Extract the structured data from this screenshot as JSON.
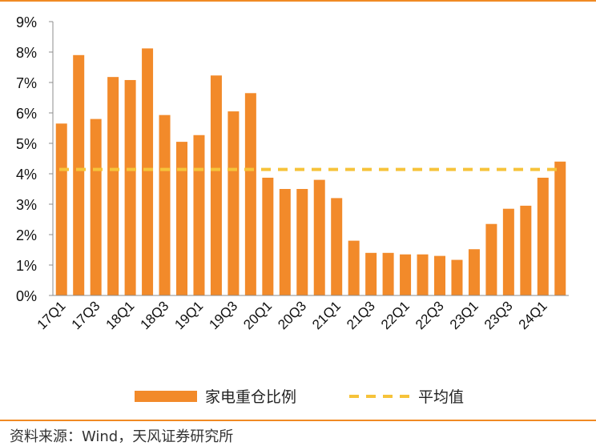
{
  "colors": {
    "bar": "#F28A2A",
    "avg_line": "#F6C33A",
    "rule": "#F08A24"
  },
  "source": "资料来源：Wind，天风证券研究所",
  "chart_data": {
    "type": "bar",
    "categories": [
      "17Q1",
      "17Q2",
      "17Q3",
      "17Q4",
      "18Q1",
      "18Q2",
      "18Q3",
      "18Q4",
      "19Q1",
      "19Q2",
      "19Q3",
      "19Q4",
      "20Q1",
      "20Q2",
      "20Q3",
      "20Q4",
      "21Q1",
      "21Q2",
      "21Q3",
      "21Q4",
      "22Q1",
      "22Q2",
      "22Q3",
      "22Q4",
      "23Q1",
      "23Q2",
      "23Q3",
      "23Q4",
      "24Q1",
      "24Q2"
    ],
    "tick_labels": [
      "17Q1",
      "17Q3",
      "18Q1",
      "18Q3",
      "19Q1",
      "19Q3",
      "20Q1",
      "20Q3",
      "21Q1",
      "21Q3",
      "22Q1",
      "22Q3",
      "23Q1",
      "23Q3",
      "24Q1"
    ],
    "series": [
      {
        "name": "家电重仓比例",
        "type": "bar",
        "values": [
          5.65,
          7.9,
          5.8,
          7.18,
          7.08,
          8.12,
          5.93,
          5.05,
          5.27,
          7.23,
          6.05,
          6.65,
          3.87,
          3.5,
          3.5,
          3.8,
          3.2,
          1.8,
          1.4,
          1.4,
          1.35,
          1.35,
          1.3,
          1.17,
          1.52,
          2.35,
          2.85,
          2.95,
          3.87,
          4.4
        ]
      },
      {
        "name": "平均值",
        "type": "line-dashed",
        "value": 4.14
      }
    ],
    "y_ticks": [
      "0%",
      "1%",
      "2%",
      "3%",
      "4%",
      "5%",
      "6%",
      "7%",
      "8%",
      "9%"
    ],
    "ylim": [
      0,
      9
    ],
    "legend_position": "bottom-center",
    "grid": false
  }
}
